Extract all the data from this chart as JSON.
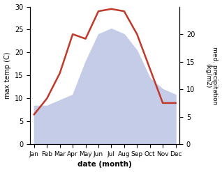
{
  "months": [
    "Jan",
    "Feb",
    "Mar",
    "Apr",
    "May",
    "Jun",
    "Jul",
    "Aug",
    "Sep",
    "Oct",
    "Nov",
    "Dec"
  ],
  "month_x": [
    0,
    1,
    2,
    3,
    4,
    5,
    6,
    7,
    8,
    9,
    10,
    11
  ],
  "temp": [
    6.5,
    10.0,
    15.5,
    24.0,
    23.0,
    29.0,
    29.5,
    29.0,
    24.0,
    16.5,
    9.0,
    9.0
  ],
  "precip": [
    7,
    7,
    8,
    9,
    15,
    20,
    21,
    20,
    17,
    12,
    10,
    9
  ],
  "temp_color": "#c0392b",
  "precip_fill_color": "#c5cce8",
  "precip_line_color": "#c5cce8",
  "xlabel": "date (month)",
  "ylabel_left": "max temp (C)",
  "ylabel_right": "med. precipitation\n(kg/m2)",
  "ylim_left": [
    0,
    30
  ],
  "ylim_right": [
    0,
    25
  ],
  "yticks_left": [
    0,
    5,
    10,
    15,
    20,
    25,
    30
  ],
  "yticks_right": [
    0,
    5,
    10,
    15,
    20
  ],
  "temp_linewidth": 1.8,
  "bg_color": "#ffffff"
}
